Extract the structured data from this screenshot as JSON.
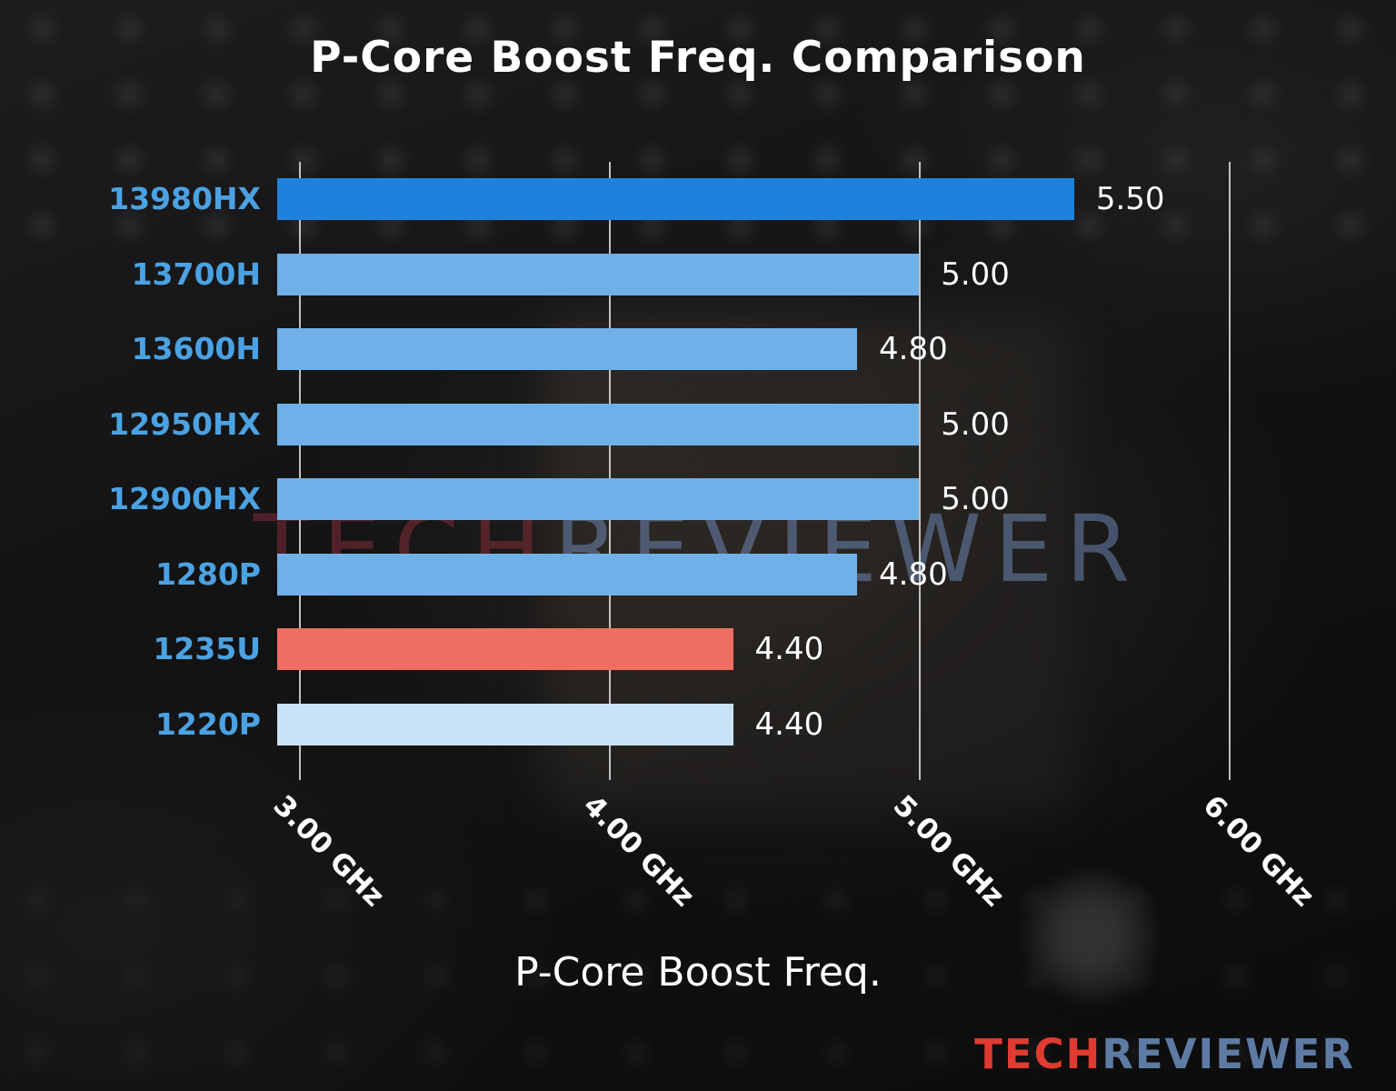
{
  "title": "P-Core Boost Freq. Comparison",
  "watermark": {
    "part1": "TECH",
    "part2": "REVIEWER"
  },
  "brand": {
    "part1": "TECH",
    "part2": "REVIEWER",
    "color1": "#e03a31",
    "color2": "#5d7ba3"
  },
  "chart_data": {
    "type": "bar",
    "orientation": "horizontal",
    "title": "P-Core Boost Freq. Comparison",
    "xlabel": "P-Core Boost Freq.",
    "ylabel": "",
    "categories": [
      "13980HX",
      "13700H",
      "13600H",
      "12950HX",
      "12900HX",
      "1280P",
      "1235U",
      "1220P"
    ],
    "values": [
      5.5,
      5.0,
      4.8,
      5.0,
      5.0,
      4.8,
      4.4,
      4.4
    ],
    "value_labels": [
      "5.50",
      "5.00",
      "4.80",
      "5.00",
      "5.00",
      "4.80",
      "4.40",
      "4.40"
    ],
    "bar_colors": [
      "#1e82dc",
      "#70b0e8",
      "#70b0e8",
      "#70b0e8",
      "#70b0e8",
      "#70b0e8",
      "#ee6e62",
      "#c9e2f6"
    ],
    "xticks": [
      3,
      4,
      5,
      6
    ],
    "xtick_labels": [
      "3.00 GHz",
      "4.00 GHz",
      "5.00 GHz",
      "6.00 GHz"
    ],
    "xlim": [
      2.93,
      6.33
    ],
    "grid": true,
    "legend": false,
    "colors": {
      "category_label": "#4ba2e2",
      "value_label": "#ffffff",
      "grid": "#ebebeb",
      "title": "#ffffff",
      "bar_highlight": "#1e82dc",
      "bar_default": "#70b0e8",
      "bar_red": "#ee6e62",
      "bar_light": "#c9e2f6"
    }
  }
}
